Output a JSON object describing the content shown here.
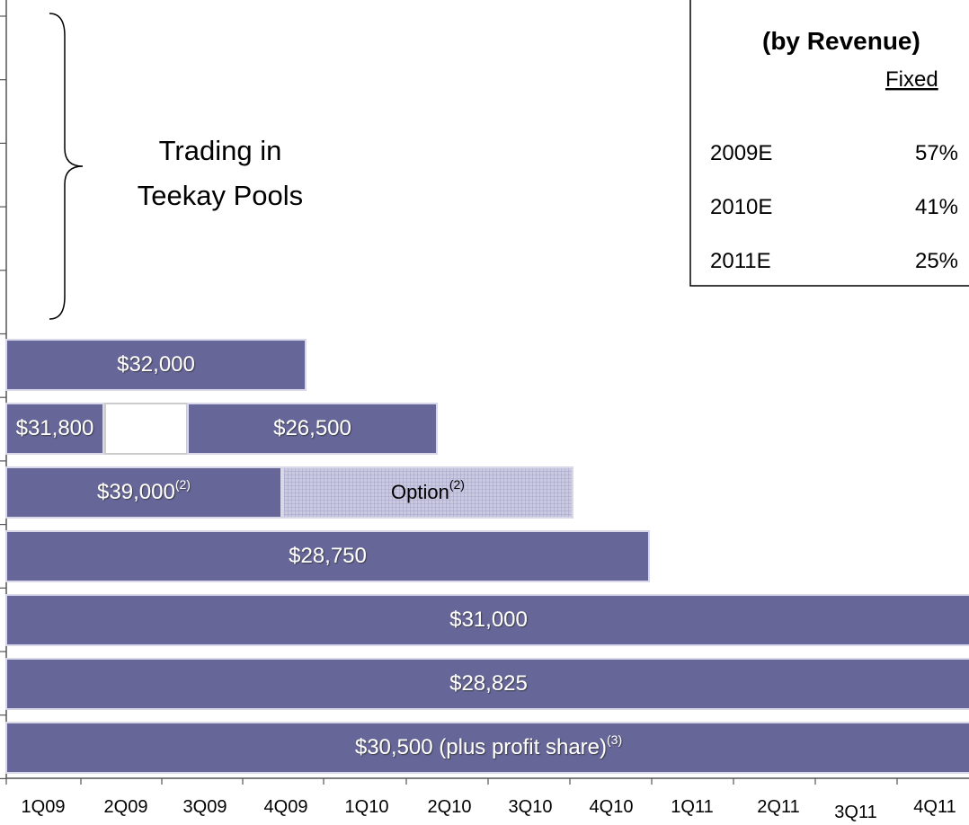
{
  "brace_label": [
    "Trading in",
    "Teekay Pools"
  ],
  "table": {
    "title": "(by Revenue)",
    "column": "Fixed",
    "rows": [
      [
        "2009E",
        "57%"
      ],
      [
        "2010E",
        "41%"
      ],
      [
        "2011E",
        "25%"
      ]
    ]
  },
  "bars": [
    {
      "segments": [
        {
          "text": "$32,000"
        }
      ]
    },
    {
      "segments": [
        {
          "text": "$31,800"
        },
        {
          "text": "$26,500"
        }
      ]
    },
    {
      "segments": [
        {
          "text": "$39,000",
          "note": "(2)"
        },
        {
          "text": "Option",
          "note": "(2)"
        }
      ]
    },
    {
      "segments": [
        {
          "text": "$28,750"
        }
      ]
    },
    {
      "segments": [
        {
          "text": "$31,000"
        }
      ]
    },
    {
      "segments": [
        {
          "text": "$28,825"
        }
      ]
    },
    {
      "segments": [
        {
          "text": "$30,500 (plus profit share)",
          "note": "(3)"
        }
      ]
    }
  ],
  "quarters": [
    "1Q09",
    "2Q09",
    "3Q09",
    "4Q09",
    "1Q10",
    "2Q10",
    "3Q10",
    "4Q10",
    "1Q11",
    "2Q11",
    "3Q11",
    "4Q11"
  ]
}
